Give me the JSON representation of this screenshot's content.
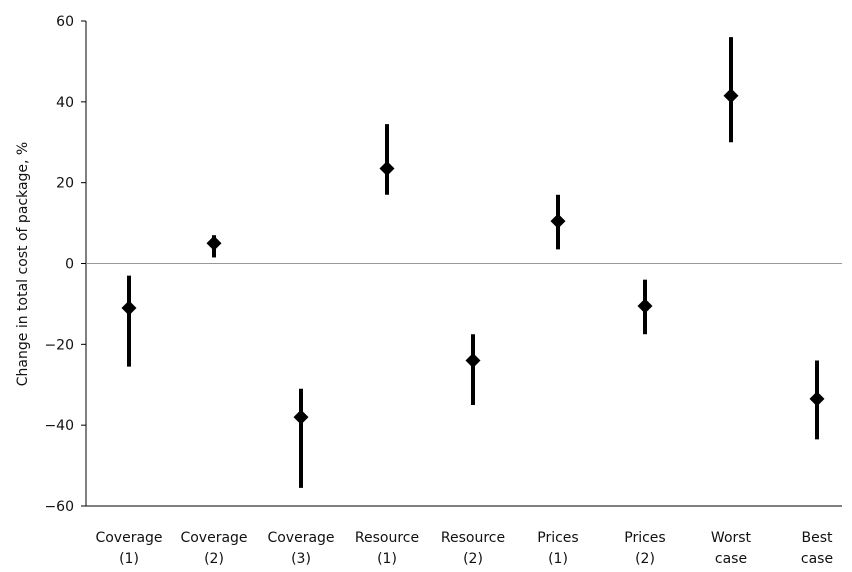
{
  "chart_data": {
    "type": "scatter",
    "ylabel": "Change in total cost of package, %",
    "ylim": [
      -60,
      60
    ],
    "yticks": [
      60,
      40,
      20,
      0,
      -20,
      -40,
      -60
    ],
    "yticks_labels": [
      "60",
      "40",
      "20",
      "0",
      "−20",
      "−40",
      "−60"
    ],
    "zero_line": true,
    "grid": false,
    "categories": [
      [
        "Coverage",
        "(1)"
      ],
      [
        "Coverage",
        "(2)"
      ],
      [
        "Coverage",
        "(3)"
      ],
      [
        "Resource",
        "(1)"
      ],
      [
        "Resource",
        "(2)"
      ],
      [
        "Prices",
        "(1)"
      ],
      [
        "Prices",
        "(2)"
      ],
      [
        "Worst",
        "case"
      ],
      [
        "Best",
        "case"
      ]
    ],
    "series": [
      {
        "marker": "diamond",
        "color": "#000000",
        "values": [
          -11,
          5,
          -38,
          23.5,
          -24,
          10.5,
          -10.5,
          41.5,
          -33.5
        ],
        "lower": [
          -25.5,
          1.5,
          -55.5,
          17,
          -35,
          3.5,
          -17.5,
          30,
          -43.5
        ],
        "upper": [
          -3,
          7,
          -31,
          34.5,
          -17.5,
          17,
          -4,
          56,
          -24
        ]
      }
    ]
  }
}
